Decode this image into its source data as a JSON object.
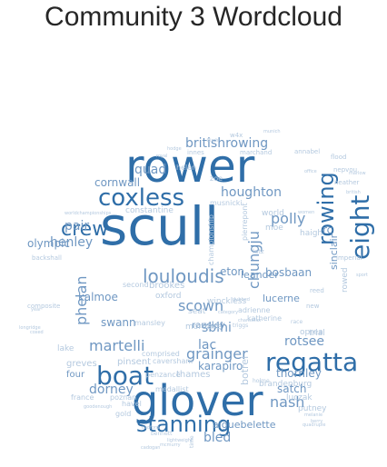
{
  "title": "Community 3 Wordcloud",
  "colors": {
    "text_title": "#262626",
    "background": "#ffffff",
    "palette_dark": "#2f6ea8",
    "palette_mid": "#6f97c2",
    "palette_light": "#b4c9df"
  },
  "words": [
    {
      "text": "rower",
      "weight": 1.0,
      "orient": "h"
    },
    {
      "text": "scull",
      "weight": 1.0,
      "orient": "h"
    },
    {
      "text": "glover",
      "weight": 0.92,
      "orient": "h"
    },
    {
      "text": "coxless",
      "weight": 0.55,
      "orient": "h"
    },
    {
      "text": "boat",
      "weight": 0.55,
      "orient": "h"
    },
    {
      "text": "stanning",
      "weight": 0.52,
      "orient": "h"
    },
    {
      "text": "eight",
      "weight": 0.5,
      "orient": "v"
    },
    {
      "text": "rowing",
      "weight": 0.45,
      "orient": "v"
    },
    {
      "text": "regatta",
      "weight": 0.45,
      "orient": "h"
    },
    {
      "text": "crew",
      "weight": 0.45,
      "orient": "h"
    },
    {
      "text": "louloudis",
      "weight": 0.32,
      "orient": "h"
    },
    {
      "text": "britishrowing",
      "weight": 0.28,
      "orient": "h"
    },
    {
      "text": "polly",
      "weight": 0.27,
      "orient": "h"
    },
    {
      "text": "scown",
      "weight": 0.27,
      "orient": "h"
    },
    {
      "text": "martelli",
      "weight": 0.27,
      "orient": "h"
    },
    {
      "text": "grainger",
      "weight": 0.27,
      "orient": "h"
    },
    {
      "text": "nash",
      "weight": 0.27,
      "orient": "h"
    },
    {
      "text": "chungju",
      "weight": 0.26,
      "orient": "v"
    },
    {
      "text": "phelan",
      "weight": 0.26,
      "orient": "v"
    },
    {
      "text": "henley",
      "weight": 0.24,
      "orient": "h"
    },
    {
      "text": "pair",
      "weight": 0.24,
      "orient": "h"
    },
    {
      "text": "quad",
      "weight": 0.24,
      "orient": "h"
    },
    {
      "text": "olympic",
      "weight": 0.24,
      "orient": "h"
    },
    {
      "text": "rotsee",
      "weight": 0.24,
      "orient": "h"
    },
    {
      "text": "houghton",
      "weight": 0.22,
      "orient": "h"
    },
    {
      "text": "dorney",
      "weight": 0.22,
      "orient": "h"
    },
    {
      "text": "bled",
      "weight": 0.22,
      "orient": "h"
    },
    {
      "text": "sbihi",
      "weight": 0.2,
      "orient": "h"
    },
    {
      "text": "lac",
      "weight": 0.2,
      "orient": "h"
    },
    {
      "text": "cornwall",
      "weight": 0.2,
      "orient": "h"
    },
    {
      "text": "eton",
      "weight": 0.2,
      "orient": "h"
    },
    {
      "text": "karapiro",
      "weight": 0.19,
      "orient": "h"
    },
    {
      "text": "swann",
      "weight": 0.19,
      "orient": "h"
    },
    {
      "text": "satch",
      "weight": 0.19,
      "orient": "h"
    },
    {
      "text": "thornley",
      "weight": 0.19,
      "orient": "h"
    },
    {
      "text": "kalmoe",
      "weight": 0.18,
      "orient": "h"
    },
    {
      "text": "bosbaan",
      "weight": 0.18,
      "orient": "h"
    },
    {
      "text": "leander",
      "weight": 0.17,
      "orient": "h"
    },
    {
      "text": "lucerne",
      "weight": 0.17,
      "orient": "h"
    },
    {
      "text": "rc",
      "weight": 0.19,
      "orient": "h"
    },
    {
      "text": "sinclair",
      "weight": 0.15,
      "orient": "v"
    },
    {
      "text": "rowed",
      "weight": 0.12,
      "orient": "v"
    },
    {
      "text": "botrel",
      "weight": 0.14,
      "orient": "v"
    },
    {
      "text": "aiguebelette",
      "weight": 0.16,
      "orient": "h"
    },
    {
      "text": "four",
      "weight": 0.15,
      "orient": "h"
    },
    {
      "text": "ransley",
      "weight": 0.15,
      "orient": "h"
    },
    {
      "text": "brookes",
      "weight": 0.14,
      "orient": "h"
    },
    {
      "text": "pinsent",
      "weight": 0.13,
      "orient": "h"
    },
    {
      "text": "thames",
      "weight": 0.13,
      "orient": "h"
    },
    {
      "text": "greves",
      "weight": 0.13,
      "orient": "h"
    },
    {
      "text": "brandenburg",
      "weight": 0.12,
      "orient": "h"
    },
    {
      "text": "constantine",
      "weight": 0.12,
      "orient": "h"
    },
    {
      "text": "world",
      "weight": 0.12,
      "orient": "h"
    },
    {
      "text": "moe",
      "weight": 0.11,
      "orient": "h"
    },
    {
      "text": "haigh",
      "weight": 0.11,
      "orient": "h"
    },
    {
      "text": "lake",
      "weight": 0.12,
      "orient": "h"
    },
    {
      "text": "oxford",
      "weight": 0.1,
      "orient": "h"
    },
    {
      "text": "mortlake",
      "weight": 0.1,
      "orient": "h"
    },
    {
      "text": "winckless",
      "weight": 0.1,
      "orient": "h"
    },
    {
      "text": "adrienne",
      "weight": 0.09,
      "orient": "h"
    },
    {
      "text": "seat",
      "weight": 0.1,
      "orient": "h"
    },
    {
      "text": "second",
      "weight": 0.09,
      "orient": "h"
    },
    {
      "text": "trial",
      "weight": 0.11,
      "orient": "h"
    },
    {
      "text": "oprea",
      "weight": 0.1,
      "orient": "h"
    },
    {
      "text": "putney",
      "weight": 0.1,
      "orient": "h"
    },
    {
      "text": "luczak",
      "weight": 0.1,
      "orient": "h"
    },
    {
      "text": "havel",
      "weight": 0.1,
      "orient": "h"
    },
    {
      "text": "poznan",
      "weight": 0.1,
      "orient": "h"
    },
    {
      "text": "france",
      "weight": 0.1,
      "orient": "h"
    },
    {
      "text": "gold",
      "weight": 0.1,
      "orient": "h"
    },
    {
      "text": "caversham",
      "weight": 0.09,
      "orient": "h"
    },
    {
      "text": "comprised",
      "weight": 0.09,
      "orient": "h"
    },
    {
      "text": "medallist",
      "weight": 0.09,
      "orient": "h"
    },
    {
      "text": "penzance",
      "weight": 0.08,
      "orient": "h"
    },
    {
      "text": "pierrepont",
      "weight": 0.08,
      "orient": "v"
    },
    {
      "text": "championship",
      "weight": 0.08,
      "orient": "v"
    },
    {
      "text": "katherine",
      "weight": 0.08,
      "orient": "h"
    },
    {
      "text": "mansley",
      "weight": 0.08,
      "orient": "h"
    },
    {
      "text": "helen",
      "weight": 0.08,
      "orient": "h"
    },
    {
      "text": "zoe",
      "weight": 0.08,
      "orient": "h"
    },
    {
      "text": "musnicki",
      "weight": 0.08,
      "orient": "h"
    },
    {
      "text": "innes",
      "weight": 0.08,
      "orient": "h"
    },
    {
      "text": "marchand",
      "weight": 0.08,
      "orient": "h"
    },
    {
      "text": "annabel",
      "weight": 0.08,
      "orient": "h"
    },
    {
      "text": "flood",
      "weight": 0.08,
      "orient": "h"
    },
    {
      "text": "nepvou",
      "weight": 0.08,
      "orient": "h"
    },
    {
      "text": "heather",
      "weight": 0.08,
      "orient": "h"
    },
    {
      "text": "w4x",
      "weight": 0.07,
      "orient": "h"
    },
    {
      "text": "backshall",
      "weight": 0.08,
      "orient": "h"
    },
    {
      "text": "composite",
      "weight": 0.08,
      "orient": "h"
    },
    {
      "text": "imperial",
      "weight": 0.08,
      "orient": "h"
    },
    {
      "text": "reed",
      "weight": 0.08,
      "orient": "h"
    },
    {
      "text": "new",
      "weight": 0.08,
      "orient": "h"
    },
    {
      "text": "holme",
      "weight": 0.07,
      "orient": "h"
    },
    {
      "text": "race",
      "weight": 0.07,
      "orient": "h"
    },
    {
      "text": "bennett",
      "weight": 0.07,
      "orient": "h"
    },
    {
      "text": "time",
      "weight": 0.07,
      "orient": "v"
    },
    {
      "text": "latz",
      "weight": 0.07,
      "orient": "h"
    },
    {
      "text": "triggs",
      "weight": 0.06,
      "orient": "h"
    },
    {
      "text": "year",
      "weight": 0.05,
      "orient": "h"
    },
    {
      "text": "sport",
      "weight": 0.05,
      "orient": "h"
    },
    {
      "text": "british",
      "weight": 0.05,
      "orient": "h"
    },
    {
      "text": "munich",
      "weight": 0.05,
      "orient": "h"
    },
    {
      "text": "royal",
      "weight": 0.05,
      "orient": "h"
    },
    {
      "text": "birch",
      "weight": 0.05,
      "orient": "h"
    },
    {
      "text": "hodge",
      "weight": 0.05,
      "orient": "h"
    },
    {
      "text": "coxed",
      "weight": 0.05,
      "orient": "h"
    },
    {
      "text": "longridge",
      "weight": 0.05,
      "orient": "h"
    },
    {
      "text": "worldchampionships",
      "weight": 0.05,
      "orient": "h"
    },
    {
      "text": "office",
      "weight": 0.05,
      "orient": "h"
    },
    {
      "text": "women",
      "weight": 0.05,
      "orient": "h"
    },
    {
      "text": "dubbed",
      "weight": 0.05,
      "orient": "h"
    },
    {
      "text": "marlow",
      "weight": 0.05,
      "orient": "h"
    },
    {
      "text": "category",
      "weight": 0.05,
      "orient": "h"
    },
    {
      "text": "berry",
      "weight": 0.05,
      "orient": "h"
    },
    {
      "text": "quadruple",
      "weight": 0.05,
      "orient": "h"
    },
    {
      "text": "melanie",
      "weight": 0.05,
      "orient": "h"
    },
    {
      "text": "lightweight",
      "weight": 0.05,
      "orient": "h"
    },
    {
      "text": "cadogan",
      "weight": 0.05,
      "orient": "h"
    },
    {
      "text": "mcmurry",
      "weight": 0.05,
      "orient": "h"
    },
    {
      "text": "cadford",
      "weight": 0.05,
      "orient": "h"
    },
    {
      "text": "goodenough",
      "weight": 0.05,
      "orient": "h"
    },
    {
      "text": "chancellor",
      "weight": 0.05,
      "orient": "h"
    }
  ]
}
